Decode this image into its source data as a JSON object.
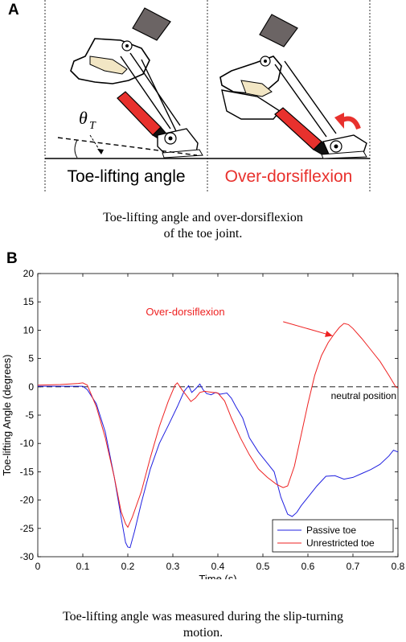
{
  "panel_a": {
    "label": "A",
    "left_title": "Toe-lifting angle",
    "right_title": "Over-dorsiflexion",
    "theta_symbol": "θ",
    "theta_subscript": "T",
    "caption_line1": "Toe-lifting angle and over-dorsiflexion",
    "caption_line2": "of the toe joint.",
    "colors": {
      "highlight": "#e8312d",
      "cylinder": "#e8312d",
      "actuator": "#6b6464",
      "joint_pad": "#f2e6c4"
    }
  },
  "panel_b": {
    "label": "B",
    "caption_line1": "Toe-lifting angle was measured during the slip-turning",
    "caption_line2": "motion."
  },
  "chart_data": {
    "type": "line",
    "title": "",
    "xlabel": "Time (s)",
    "ylabel": "Toe-lifting Angle (degrees)",
    "xlim": [
      0,
      0.8
    ],
    "ylim": [
      -30,
      20
    ],
    "xticks": [
      "0",
      "0.1",
      "0.2",
      "0.3",
      "0.4",
      "0.5",
      "0.6",
      "0.7",
      "0.8"
    ],
    "yticks": [
      "20",
      "15",
      "10",
      "5",
      "0",
      "-5",
      "-10",
      "-15",
      "-20",
      "-25",
      "-30"
    ],
    "grid": false,
    "legend_position": "bottom-right",
    "reference_line": {
      "y": 0,
      "style": "dashed",
      "label": "neutral position"
    },
    "annotation": {
      "text": "Over-dorsiflexion",
      "arrow_to": [
        0.655,
        9.0
      ],
      "color": "#ee2222"
    },
    "series": [
      {
        "name": "Passive toe",
        "color": "#2020e0",
        "points": [
          [
            0,
            0.1
          ],
          [
            0.05,
            0.1
          ],
          [
            0.1,
            0.1
          ],
          [
            0.11,
            -0.5
          ],
          [
            0.13,
            -3
          ],
          [
            0.15,
            -8
          ],
          [
            0.17,
            -16
          ],
          [
            0.185,
            -23
          ],
          [
            0.195,
            -27.5
          ],
          [
            0.2,
            -28.3
          ],
          [
            0.205,
            -28.4
          ],
          [
            0.215,
            -25.5
          ],
          [
            0.23,
            -20.5
          ],
          [
            0.25,
            -14.5
          ],
          [
            0.27,
            -10
          ],
          [
            0.29,
            -6.8
          ],
          [
            0.31,
            -3.5
          ],
          [
            0.325,
            -0.8
          ],
          [
            0.335,
            0.2
          ],
          [
            0.342,
            -1
          ],
          [
            0.35,
            -0.4
          ],
          [
            0.36,
            0.5
          ],
          [
            0.367,
            -0.5
          ],
          [
            0.375,
            -1.2
          ],
          [
            0.385,
            -1.4
          ],
          [
            0.395,
            -1
          ],
          [
            0.405,
            -1.3
          ],
          [
            0.42,
            -1.1
          ],
          [
            0.43,
            -2
          ],
          [
            0.44,
            -3.5
          ],
          [
            0.455,
            -5.5
          ],
          [
            0.47,
            -9
          ],
          [
            0.49,
            -11.5
          ],
          [
            0.51,
            -13.5
          ],
          [
            0.525,
            -15
          ],
          [
            0.54,
            -19.5
          ],
          [
            0.555,
            -22.5
          ],
          [
            0.565,
            -22.9
          ],
          [
            0.575,
            -22.2
          ],
          [
            0.585,
            -21
          ],
          [
            0.6,
            -19.5
          ],
          [
            0.62,
            -17.5
          ],
          [
            0.64,
            -15.8
          ],
          [
            0.66,
            -15.7
          ],
          [
            0.68,
            -16.3
          ],
          [
            0.7,
            -16
          ],
          [
            0.72,
            -15.3
          ],
          [
            0.74,
            -14.6
          ],
          [
            0.76,
            -13.7
          ],
          [
            0.78,
            -12.2
          ],
          [
            0.79,
            -11.2
          ],
          [
            0.8,
            -11.5
          ]
        ]
      },
      {
        "name": "Unrestricted toe",
        "color": "#ee2222",
        "points": [
          [
            0,
            0.3
          ],
          [
            0.05,
            0.4
          ],
          [
            0.09,
            0.6
          ],
          [
            0.1,
            0.7
          ],
          [
            0.11,
            0.3
          ],
          [
            0.13,
            -3.5
          ],
          [
            0.15,
            -9
          ],
          [
            0.17,
            -16
          ],
          [
            0.185,
            -22
          ],
          [
            0.195,
            -24.2
          ],
          [
            0.2,
            -24.8
          ],
          [
            0.21,
            -23
          ],
          [
            0.23,
            -18.5
          ],
          [
            0.25,
            -12.5
          ],
          [
            0.27,
            -7
          ],
          [
            0.29,
            -2.5
          ],
          [
            0.305,
            0.3
          ],
          [
            0.31,
            0.7
          ],
          [
            0.32,
            -0.5
          ],
          [
            0.33,
            -1.5
          ],
          [
            0.34,
            -2.6
          ],
          [
            0.35,
            -2
          ],
          [
            0.36,
            -1
          ],
          [
            0.37,
            -0.8
          ],
          [
            0.38,
            -0.9
          ],
          [
            0.4,
            -1.1
          ],
          [
            0.415,
            -2.5
          ],
          [
            0.43,
            -5.5
          ],
          [
            0.45,
            -9
          ],
          [
            0.47,
            -12
          ],
          [
            0.49,
            -14.5
          ],
          [
            0.51,
            -16
          ],
          [
            0.53,
            -17.2
          ],
          [
            0.545,
            -17.8
          ],
          [
            0.555,
            -17.5
          ],
          [
            0.57,
            -14
          ],
          [
            0.585,
            -8.5
          ],
          [
            0.6,
            -3
          ],
          [
            0.615,
            2
          ],
          [
            0.63,
            5.5
          ],
          [
            0.645,
            7.8
          ],
          [
            0.66,
            9.5
          ],
          [
            0.67,
            10.5
          ],
          [
            0.68,
            11.2
          ],
          [
            0.69,
            11
          ],
          [
            0.7,
            10.3
          ],
          [
            0.72,
            8.5
          ],
          [
            0.74,
            6.5
          ],
          [
            0.76,
            4.5
          ],
          [
            0.78,
            2
          ],
          [
            0.795,
            0
          ],
          [
            0.8,
            -0.2
          ]
        ]
      }
    ]
  }
}
